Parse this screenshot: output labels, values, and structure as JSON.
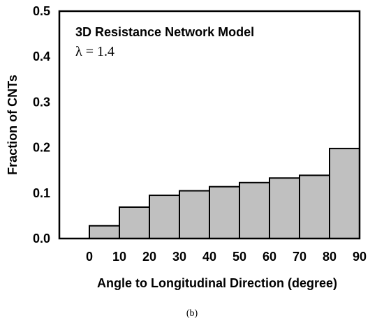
{
  "chart_data": {
    "type": "bar",
    "x_ticks": [
      "0",
      "10",
      "20",
      "30",
      "40",
      "50",
      "60",
      "70",
      "80",
      "90"
    ],
    "bins": [
      {
        "from": 0,
        "to": 10,
        "value": 0.028
      },
      {
        "from": 10,
        "to": 20,
        "value": 0.069
      },
      {
        "from": 20,
        "to": 30,
        "value": 0.095
      },
      {
        "from": 30,
        "to": 40,
        "value": 0.105
      },
      {
        "from": 40,
        "to": 50,
        "value": 0.114
      },
      {
        "from": 50,
        "to": 60,
        "value": 0.123
      },
      {
        "from": 60,
        "to": 70,
        "value": 0.133
      },
      {
        "from": 70,
        "to": 80,
        "value": 0.139
      },
      {
        "from": 80,
        "to": 90,
        "value": 0.198
      }
    ],
    "xlabel": "Angle to Longitudinal Direction (degree)",
    "ylabel": "Fraction of CNTs",
    "y_ticks": [
      "0.0",
      "0.1",
      "0.2",
      "0.3",
      "0.4",
      "0.5"
    ],
    "ylim": [
      0,
      0.5
    ],
    "xlim": [
      -10,
      90
    ],
    "annotation_line1": "3D Resistance Network Model",
    "annotation_line2": "λ = 1.4",
    "bar_color": "#c0c0c0",
    "grid": false
  },
  "caption": "(b)"
}
